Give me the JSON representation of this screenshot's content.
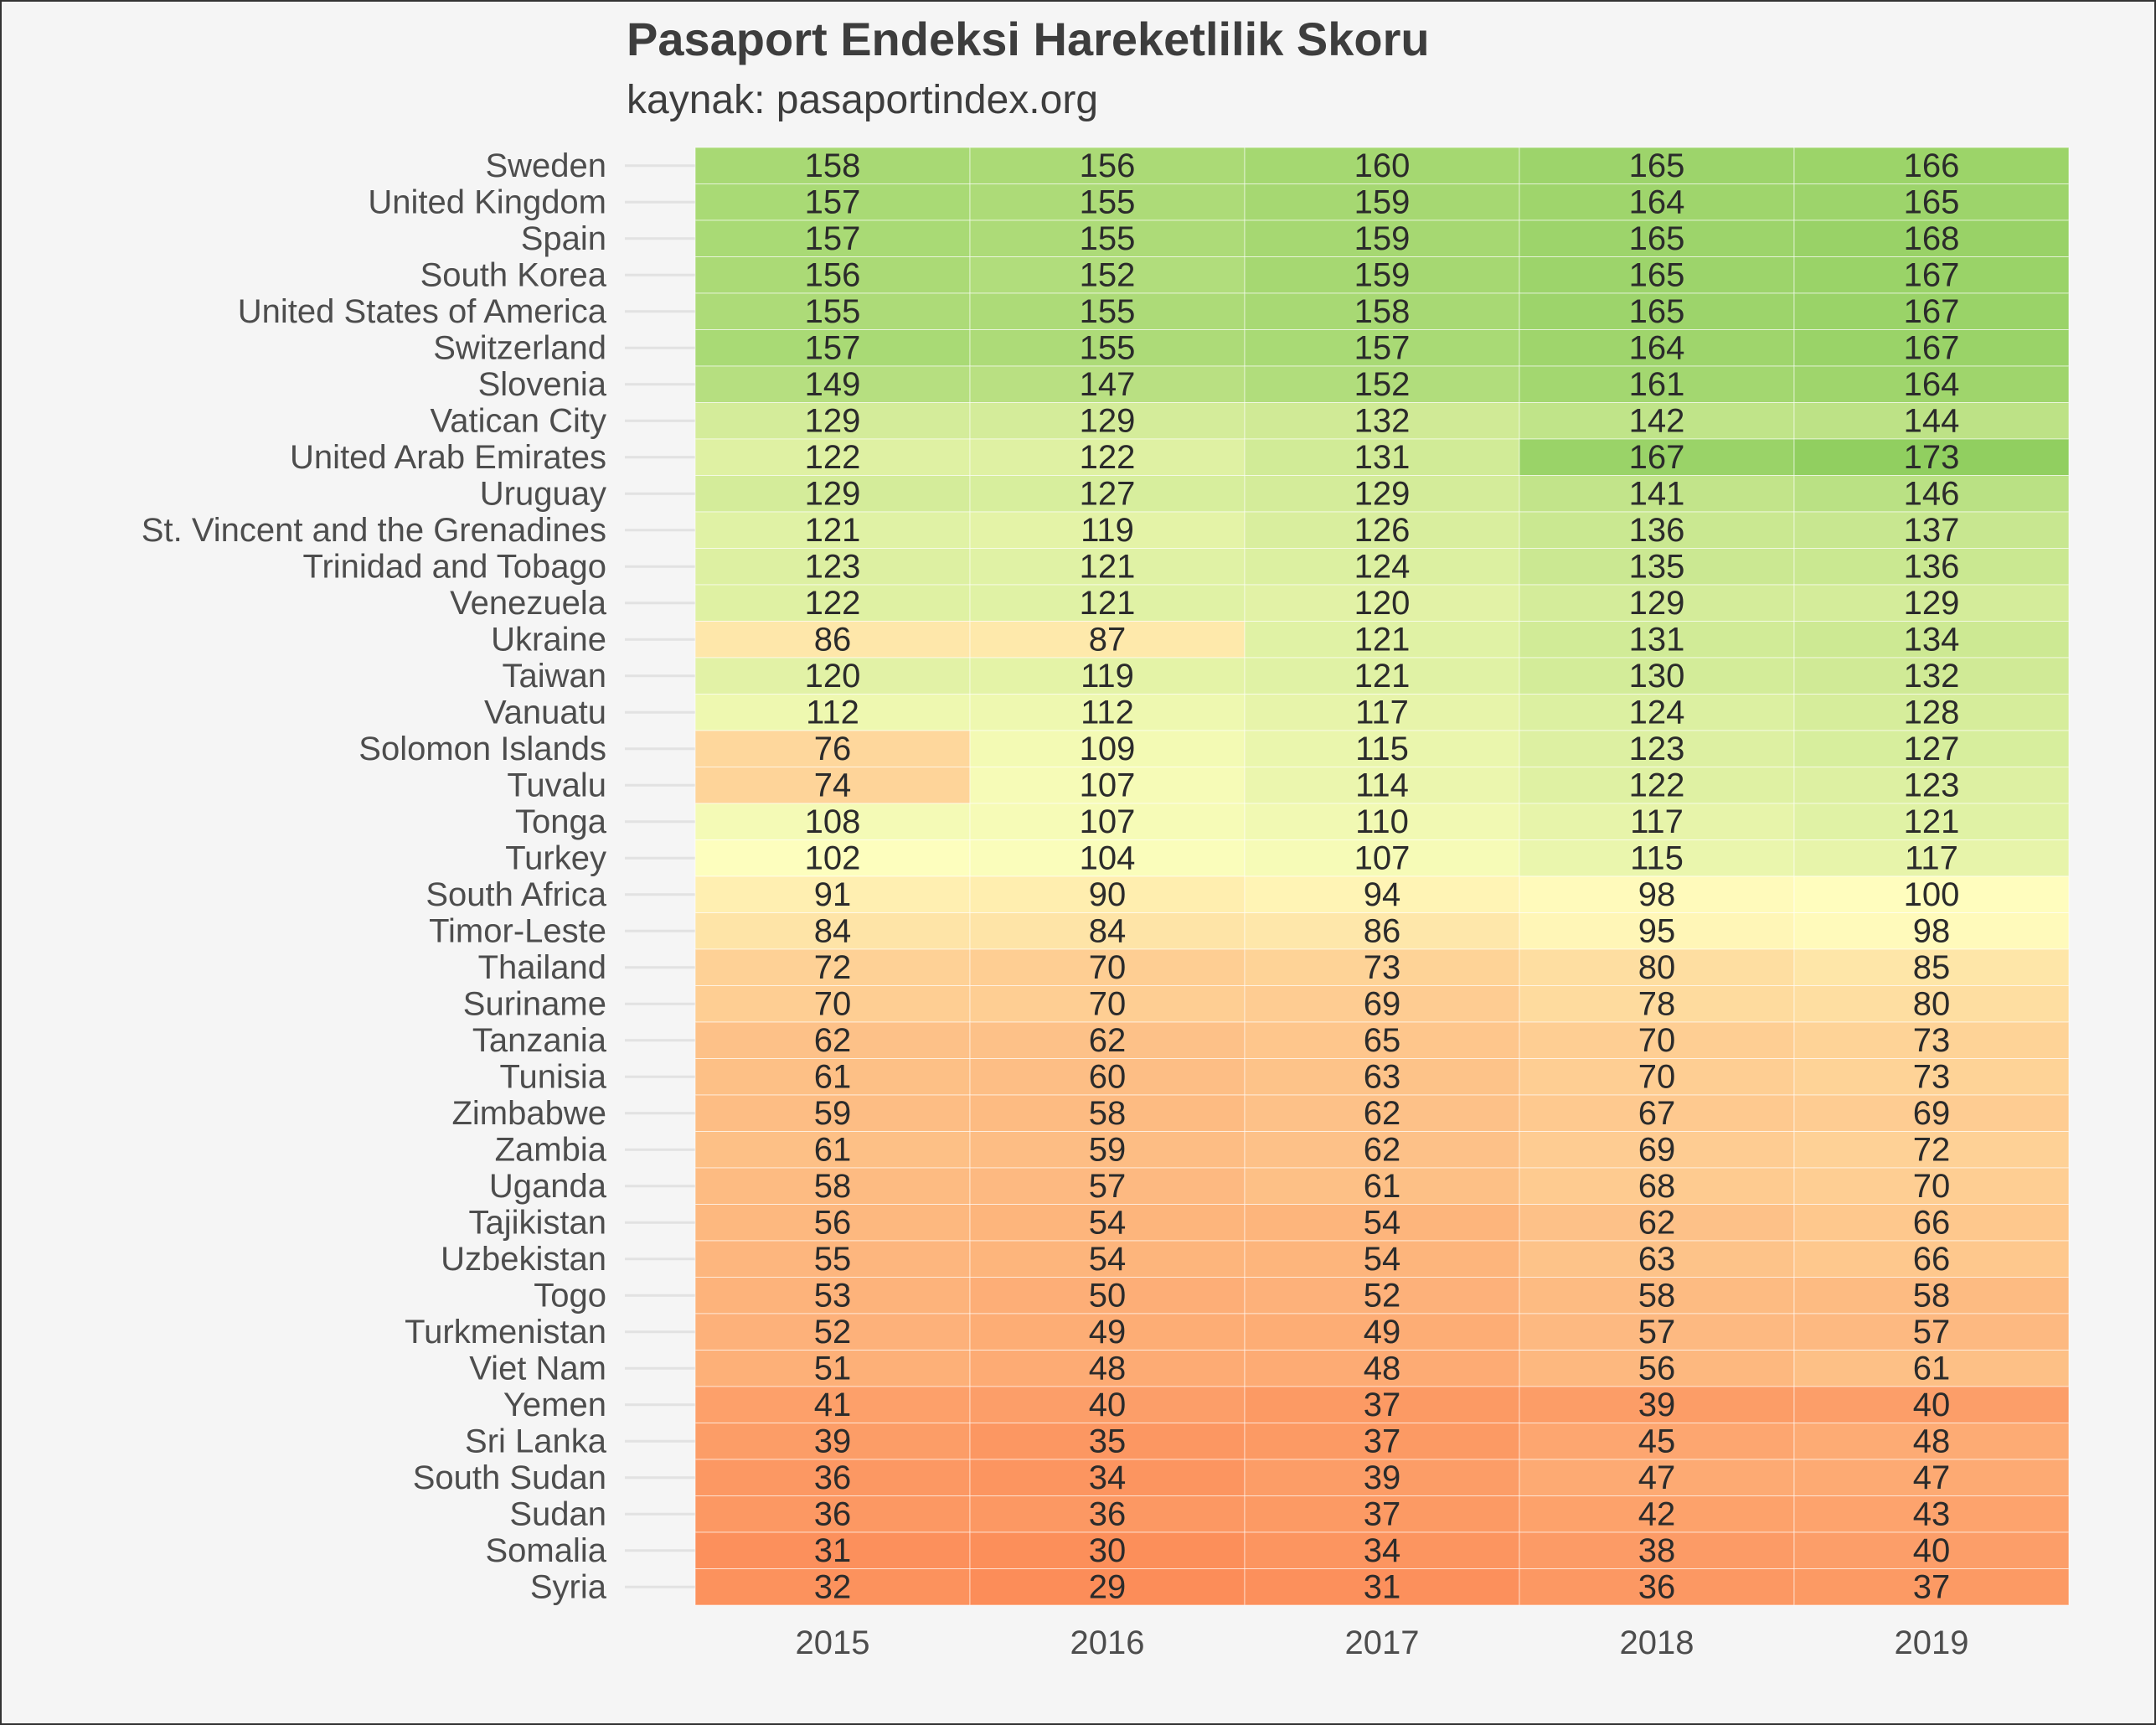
{
  "chart_data": {
    "type": "heatmap",
    "title": "Pasaport Endeksi Hareketlilik Skoru",
    "subtitle": "kaynak: pasaportindex.org",
    "xlabel": "",
    "ylabel": "",
    "x": [
      "2015",
      "2016",
      "2017",
      "2018",
      "2019"
    ],
    "y": [
      "Sweden",
      "United Kingdom",
      "Spain",
      "South Korea",
      "United States of America",
      "Switzerland",
      "Slovenia",
      "Vatican City",
      "United Arab Emirates",
      "Uruguay",
      "St. Vincent and the Grenadines",
      "Trinidad and Tobago",
      "Venezuela",
      "Ukraine",
      "Taiwan",
      "Vanuatu",
      "Solomon Islands",
      "Tuvalu",
      "Tonga",
      "Turkey",
      "South Africa",
      "Timor-Leste",
      "Thailand",
      "Suriname",
      "Tanzania",
      "Tunisia",
      "Zimbabwe",
      "Zambia",
      "Uganda",
      "Tajikistan",
      "Uzbekistan",
      "Togo",
      "Turkmenistan",
      "Viet Nam",
      "Yemen",
      "Sri Lanka",
      "South Sudan",
      "Sudan",
      "Somalia",
      "Syria"
    ],
    "values": [
      [
        158,
        156,
        160,
        165,
        166
      ],
      [
        157,
        155,
        159,
        164,
        165
      ],
      [
        157,
        155,
        159,
        165,
        168
      ],
      [
        156,
        152,
        159,
        165,
        167
      ],
      [
        155,
        155,
        158,
        165,
        167
      ],
      [
        157,
        155,
        157,
        164,
        167
      ],
      [
        149,
        147,
        152,
        161,
        164
      ],
      [
        129,
        129,
        132,
        142,
        144
      ],
      [
        122,
        122,
        131,
        167,
        173
      ],
      [
        129,
        127,
        129,
        141,
        146
      ],
      [
        121,
        119,
        126,
        136,
        137
      ],
      [
        123,
        121,
        124,
        135,
        136
      ],
      [
        122,
        121,
        120,
        129,
        129
      ],
      [
        86,
        87,
        121,
        131,
        134
      ],
      [
        120,
        119,
        121,
        130,
        132
      ],
      [
        112,
        112,
        117,
        124,
        128
      ],
      [
        76,
        109,
        115,
        123,
        127
      ],
      [
        74,
        107,
        114,
        122,
        123
      ],
      [
        108,
        107,
        110,
        117,
        121
      ],
      [
        102,
        104,
        107,
        115,
        117
      ],
      [
        91,
        90,
        94,
        98,
        100
      ],
      [
        84,
        84,
        86,
        95,
        98
      ],
      [
        72,
        70,
        73,
        80,
        85
      ],
      [
        70,
        70,
        69,
        78,
        80
      ],
      [
        62,
        62,
        65,
        70,
        73
      ],
      [
        61,
        60,
        63,
        70,
        73
      ],
      [
        59,
        58,
        62,
        67,
        69
      ],
      [
        61,
        59,
        62,
        69,
        72
      ],
      [
        58,
        57,
        61,
        68,
        70
      ],
      [
        56,
        54,
        54,
        62,
        66
      ],
      [
        55,
        54,
        54,
        63,
        66
      ],
      [
        53,
        50,
        52,
        58,
        58
      ],
      [
        52,
        49,
        49,
        57,
        57
      ],
      [
        51,
        48,
        48,
        56,
        61
      ],
      [
        41,
        40,
        37,
        39,
        40
      ],
      [
        39,
        35,
        37,
        45,
        48
      ],
      [
        36,
        34,
        39,
        47,
        47
      ],
      [
        36,
        36,
        37,
        42,
        43
      ],
      [
        31,
        30,
        34,
        38,
        40
      ],
      [
        32,
        29,
        31,
        36,
        37
      ]
    ],
    "color_scale": {
      "low": "#fc8d59",
      "mid": "#ffffbf",
      "high": "#91cf60",
      "mid_value": 101
    },
    "grid": true,
    "legend": "none"
  }
}
